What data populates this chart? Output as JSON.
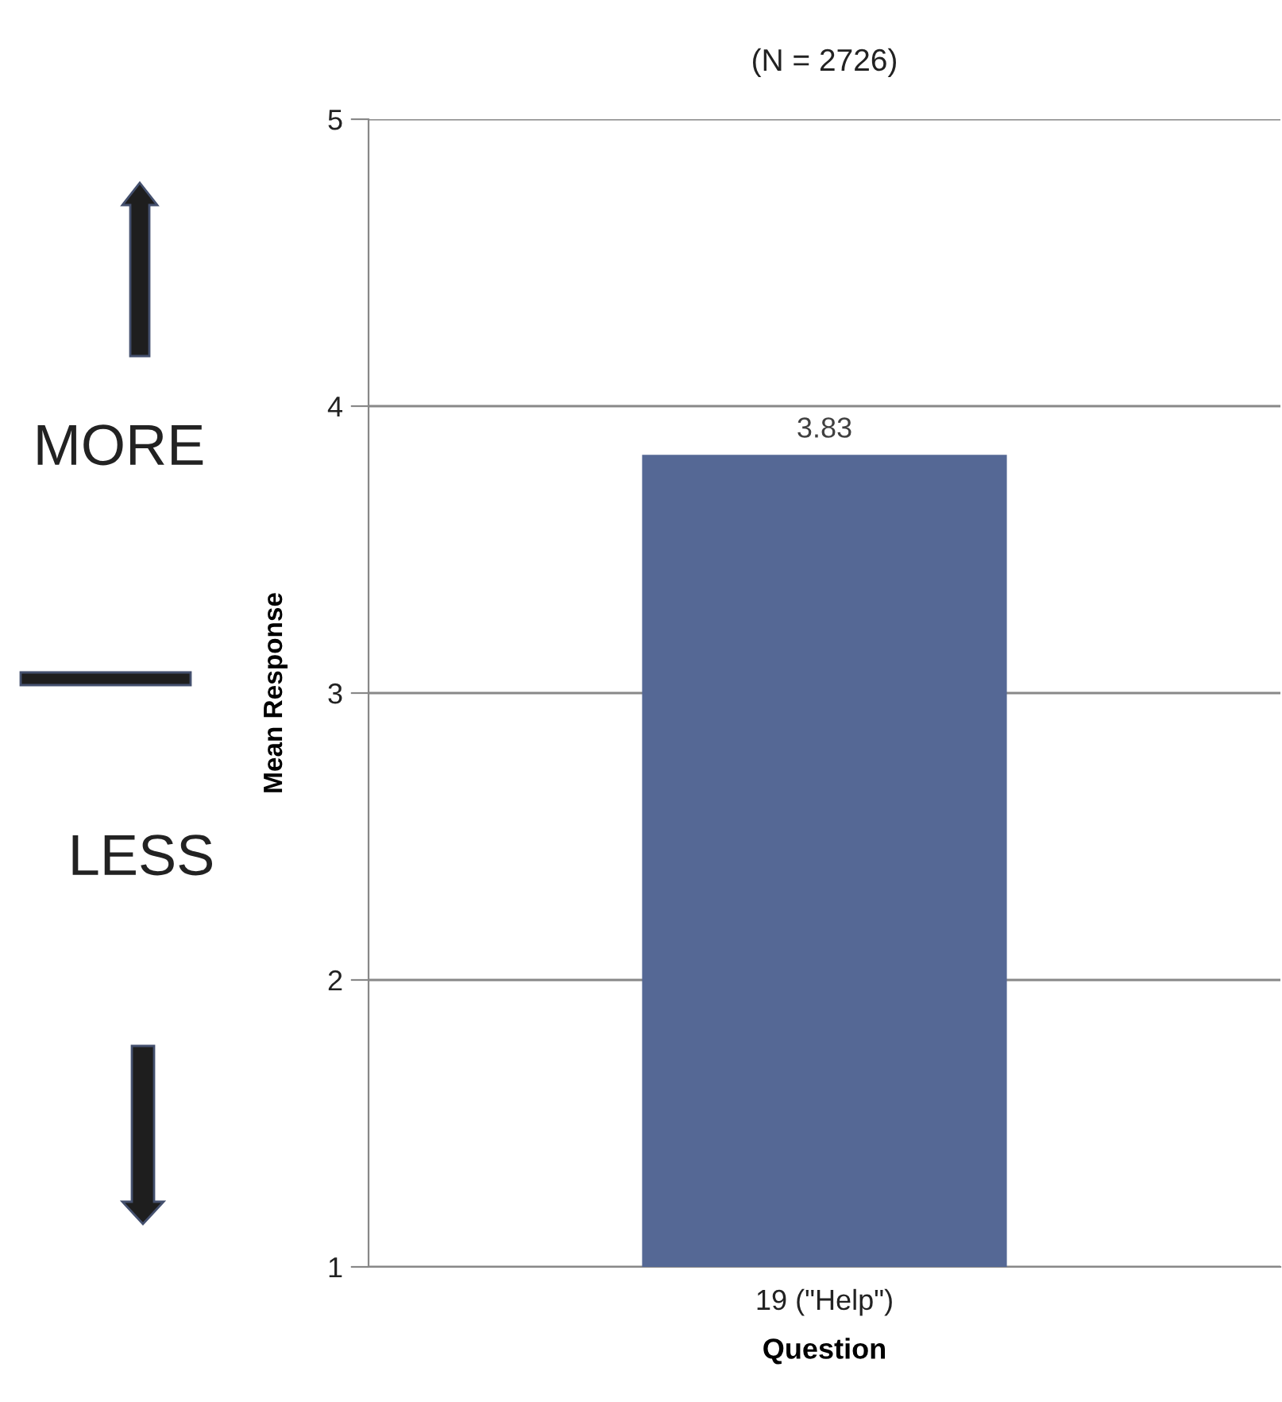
{
  "chart_data": {
    "type": "bar",
    "title": "(N = 2726)",
    "xlabel": "Question",
    "ylabel": "Mean Response",
    "categories": [
      "19 (\"Help\")"
    ],
    "values": [
      3.83
    ],
    "color": "#556895",
    "ylim": [
      1,
      5
    ],
    "yticks": [
      1,
      2,
      3,
      4,
      5
    ],
    "grid": "y",
    "data_labels": true,
    "annotations": [
      "MORE",
      "LESS"
    ]
  }
}
